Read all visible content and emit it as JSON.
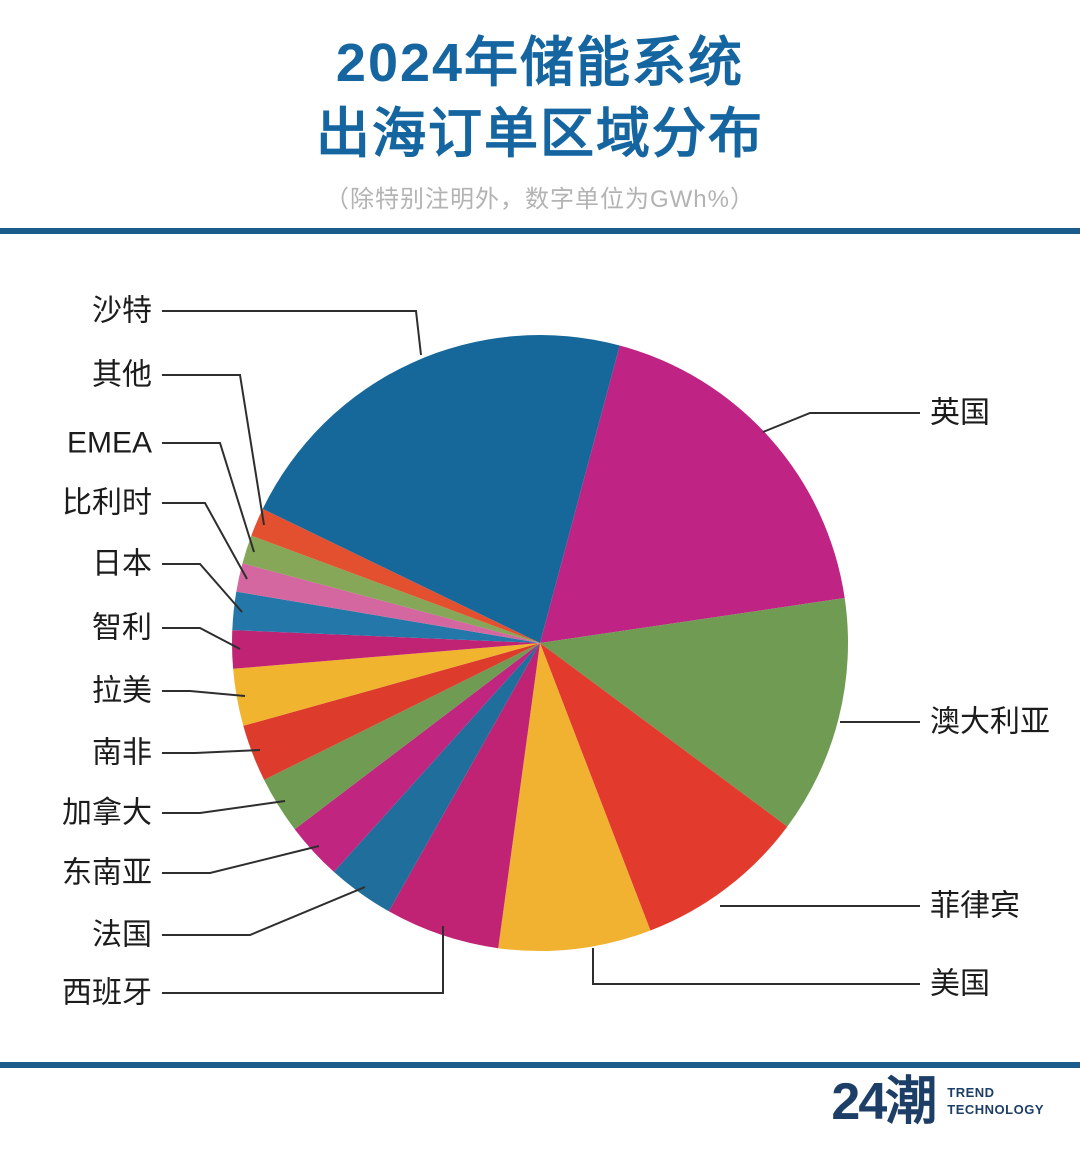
{
  "header": {
    "title_line1": "2024年储能系统",
    "title_line2": "出海订单区域分布",
    "subtitle": "（除特别注明外，数字单位为GWh%）"
  },
  "footer": {
    "logo_text": "24潮",
    "tagline_line1": "TREND",
    "tagline_line2": "TECHNOLOGY"
  },
  "colors": {
    "accent_blue": "#1a5d8d",
    "title_blue": "#1565a0",
    "text_dark": "#1c1c1c",
    "subtitle_gray": "#b3b3b3",
    "logo_navy": "#1d3e66",
    "leader_line": "#2e2e2e"
  },
  "chart_data": {
    "type": "pie",
    "title": "2024年储能系统出海订单区域分布",
    "unit_note": "（除特别注明外，数字单位为GWh%）",
    "values_note": "No numeric labels shown in chart; percentages estimated from slice angles",
    "legend_position": "leader-line labels around pie",
    "start_angle_deg": 15,
    "slices": [
      {
        "id": "uk",
        "label": "英国",
        "value": 18.5,
        "color": "#bf2484",
        "side": "right"
      },
      {
        "id": "australia",
        "label": "澳大利亚",
        "value": 12.5,
        "color": "#6f9b53",
        "side": "right"
      },
      {
        "id": "philippines",
        "label": "菲律宾",
        "value": 9,
        "color": "#e23b2e",
        "side": "right"
      },
      {
        "id": "usa",
        "label": "美国",
        "value": 8,
        "color": "#f2b231",
        "side": "right"
      },
      {
        "id": "spain",
        "label": "西班牙",
        "value": 6,
        "color": "#c02374",
        "side": "left"
      },
      {
        "id": "france",
        "label": "法国",
        "value": 3.5,
        "color": "#1f6e9c",
        "side": "left"
      },
      {
        "id": "southeast-asia",
        "label": "东南亚",
        "value": 3,
        "color": "#c0267f",
        "side": "left"
      },
      {
        "id": "canada",
        "label": "加拿大",
        "value": 3,
        "color": "#6f9b53",
        "side": "left"
      },
      {
        "id": "south-africa",
        "label": "南非",
        "value": 3,
        "color": "#dd3b2b",
        "side": "left"
      },
      {
        "id": "latam",
        "label": "拉美",
        "value": 3,
        "color": "#f0b42f",
        "side": "left"
      },
      {
        "id": "chile",
        "label": "智利",
        "value": 2,
        "color": "#c02374",
        "side": "left"
      },
      {
        "id": "japan",
        "label": "日本",
        "value": 2,
        "color": "#2478a9",
        "side": "left"
      },
      {
        "id": "belgium",
        "label": "比利时",
        "value": 1.5,
        "color": "#d4679f",
        "side": "left"
      },
      {
        "id": "emea",
        "label": "EMEA",
        "value": 1.5,
        "color": "#85a757",
        "side": "left"
      },
      {
        "id": "others",
        "label": "其他",
        "value": 1.5,
        "color": "#e2502f",
        "side": "left"
      },
      {
        "id": "saudi",
        "label": "沙特",
        "value": 22,
        "color": "#17689a",
        "side": "left"
      }
    ]
  }
}
